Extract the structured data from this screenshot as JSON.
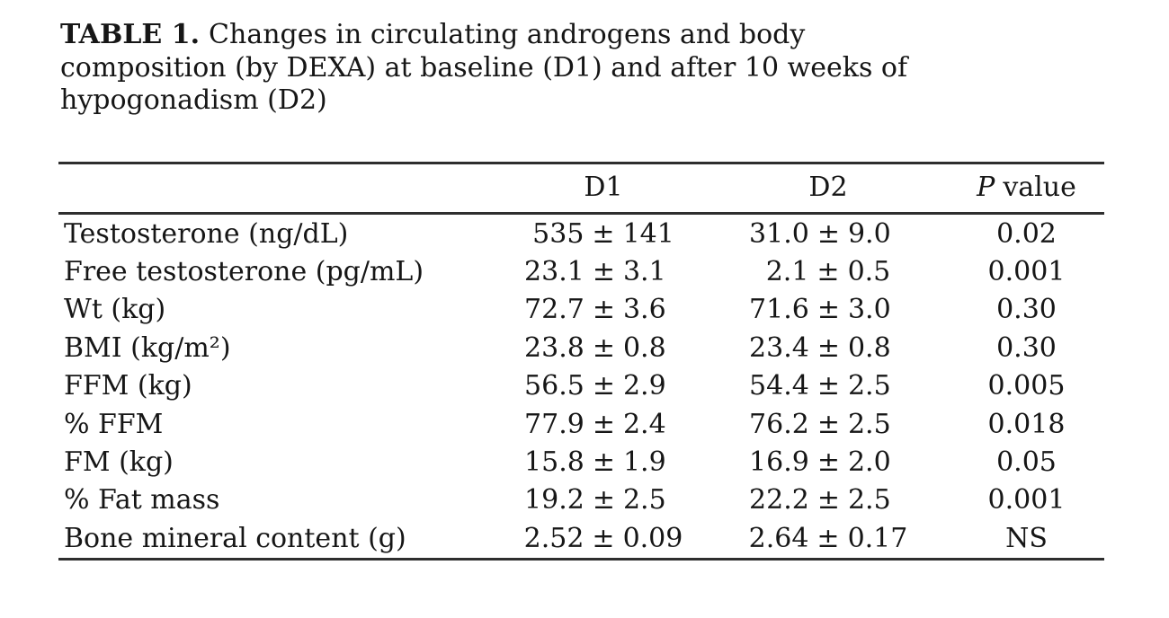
{
  "page": {
    "background": "#ffffff",
    "text_color": "#161616",
    "rule_color": "#2e2e2e"
  },
  "title": {
    "label": "TABLE 1.",
    "lines": [
      "Changes in circulating androgens and body",
      "composition (by DEXA) at baseline (D1) and after 10 weeks of",
      "hypogonadism (D2)"
    ]
  },
  "table": {
    "plusminus": "±",
    "columns": {
      "d1": "D1",
      "d2": "D2",
      "p_italic": "P",
      "p_rest": "value"
    },
    "rows": [
      {
        "label": "Testosterone (ng/dL)",
        "d1_val": "535",
        "d1_err": "141",
        "d2_val": "31.0",
        "d2_err": "9.0",
        "p": "0.02"
      },
      {
        "label": "Free testosterone (pg/mL)",
        "d1_val": "23.1",
        "d1_err": "3.1",
        "d2_val": "2.1",
        "d2_err": "0.5",
        "p": "0.001"
      },
      {
        "label": "Wt (kg)",
        "d1_val": "72.7",
        "d1_err": "3.6",
        "d2_val": "71.6",
        "d2_err": "3.0",
        "p": "0.30"
      },
      {
        "label": "BMI (kg/m²)",
        "d1_val": "23.8",
        "d1_err": "0.8",
        "d2_val": "23.4",
        "d2_err": "0.8",
        "p": "0.30"
      },
      {
        "label": "FFM (kg)",
        "d1_val": "56.5",
        "d1_err": "2.9",
        "d2_val": "54.4",
        "d2_err": "2.5",
        "p": "0.005"
      },
      {
        "label": "% FFM",
        "d1_val": "77.9",
        "d1_err": "2.4",
        "d2_val": "76.2",
        "d2_err": "2.5",
        "p": "0.018"
      },
      {
        "label": "FM (kg)",
        "d1_val": "15.8",
        "d1_err": "1.9",
        "d2_val": "16.9",
        "d2_err": "2.0",
        "p": "0.05"
      },
      {
        "label": "% Fat mass",
        "d1_val": "19.2",
        "d1_err": "2.5",
        "d2_val": "22.2",
        "d2_err": "2.5",
        "p": "0.001"
      },
      {
        "label": "Bone mineral content (g)",
        "d1_val": "2.52",
        "d1_err": "0.09",
        "d2_val": "2.64",
        "d2_err": "0.17",
        "p": "NS"
      }
    ]
  }
}
